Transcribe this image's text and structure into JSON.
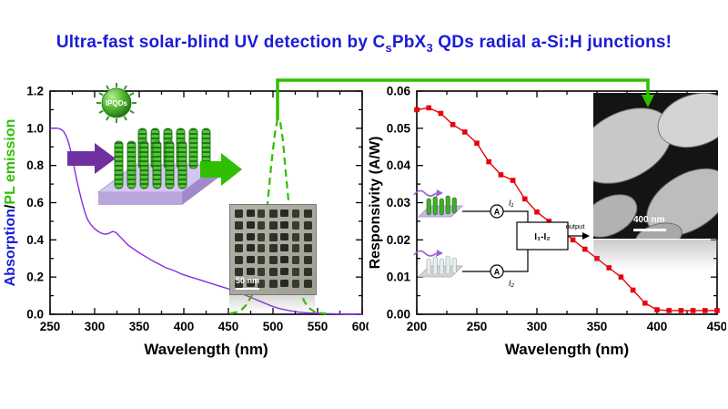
{
  "title": {
    "segments": [
      {
        "text": "Ultra-fast solar-blind UV detection by C",
        "sub": false
      },
      {
        "text": "s",
        "sub": true
      },
      {
        "text": "PbX",
        "sub": false
      },
      {
        "text": "3",
        "sub": true
      },
      {
        "text": " QDs radial a-Si:H junctions!",
        "sub": false
      }
    ],
    "color": "#1b1bd8"
  },
  "colors": {
    "title_blue": "#1b1bd8",
    "absorption_purple": "#8a2be2",
    "pl_green": "#2ebf00",
    "responsivity_red": "#e8000b",
    "arrow_purple": "#7030a0",
    "arrow_green": "#2ebf00",
    "axis_black": "#000000"
  },
  "chart_data": [
    {
      "type": "line",
      "title": "",
      "xlabel": "Wavelength (nm)",
      "ylabel": "Absorption/PL emission",
      "ylabel_segments": [
        {
          "text": "Absorption",
          "color": "#1b1bd8"
        },
        {
          "text": "/",
          "color": "#000000"
        },
        {
          "text": "PL emission",
          "color": "#2ebf00"
        }
      ],
      "xlim": [
        250,
        600
      ],
      "ylim": [
        0,
        1.2
      ],
      "xticks": [
        250,
        300,
        350,
        400,
        450,
        500,
        550,
        600
      ],
      "xtick_labels": [
        "250",
        "300",
        "350",
        "400",
        "450",
        "500",
        "550",
        "600"
      ],
      "yticks": [
        0,
        0.2,
        0.4,
        0.6,
        0.8,
        1.0,
        1.2
      ],
      "ytick_labels": [
        "0.0",
        "0.2",
        "0.4",
        "0.6",
        "0.8",
        "1.0",
        "1.2"
      ],
      "minor_x_step": 25,
      "minor_y_step": 0.1,
      "grid": false,
      "legend": "none",
      "series": [
        {
          "name": "Absorption",
          "color": "#8a2be2",
          "style": "solid",
          "width": 1.4,
          "x": [
            250,
            253,
            256,
            259,
            262,
            265,
            268,
            271,
            274,
            277,
            280,
            283,
            286,
            289,
            292,
            296,
            300,
            304,
            308,
            312,
            316,
            320,
            324,
            328,
            333,
            338,
            344,
            350,
            357,
            364,
            372,
            380,
            389,
            398,
            408,
            418,
            428,
            438,
            448,
            458,
            468,
            478,
            488,
            498,
            508,
            518,
            528,
            540,
            555,
            570,
            585,
            600
          ],
          "y": [
            1.0,
            1.0,
            1.0,
            1.0,
            0.995,
            0.985,
            0.96,
            0.92,
            0.86,
            0.79,
            0.72,
            0.66,
            0.6,
            0.55,
            0.51,
            0.48,
            0.46,
            0.445,
            0.435,
            0.43,
            0.435,
            0.445,
            0.44,
            0.42,
            0.395,
            0.37,
            0.35,
            0.33,
            0.31,
            0.29,
            0.27,
            0.25,
            0.235,
            0.215,
            0.2,
            0.185,
            0.17,
            0.155,
            0.14,
            0.125,
            0.105,
            0.085,
            0.065,
            0.045,
            0.03,
            0.02,
            0.012,
            0.007,
            0.004,
            0.002,
            0.001,
            0.001
          ]
        },
        {
          "name": "PL emission",
          "color": "#2ebf00",
          "style": "dashed",
          "width": 2.2,
          "x": [
            452,
            458,
            464,
            470,
            476,
            481,
            486,
            490,
            494,
            498,
            502,
            505,
            508,
            511,
            514,
            518,
            522,
            526,
            530,
            535,
            540,
            546,
            552,
            560
          ],
          "y": [
            0.005,
            0.01,
            0.02,
            0.05,
            0.1,
            0.17,
            0.28,
            0.42,
            0.6,
            0.8,
            0.97,
            1.05,
            1.04,
            0.94,
            0.78,
            0.58,
            0.4,
            0.25,
            0.14,
            0.07,
            0.035,
            0.015,
            0.007,
            0.003
          ]
        }
      ]
    },
    {
      "type": "line",
      "title": "",
      "xlabel": "Wavelength (nm)",
      "ylabel": "Responsivity (A/W)",
      "ylabel_segments": [
        {
          "text": "Responsivity (A/W)",
          "color": "#000000"
        }
      ],
      "xlim": [
        200,
        450
      ],
      "ylim": [
        0,
        0.06
      ],
      "xticks": [
        200,
        250,
        300,
        350,
        400,
        450
      ],
      "xtick_labels": [
        "200",
        "250",
        "300",
        "350",
        "400",
        "450"
      ],
      "yticks": [
        0,
        0.01,
        0.02,
        0.03,
        0.04,
        0.05,
        0.06
      ],
      "ytick_labels": [
        "0.00",
        "0.01",
        "0.02",
        "0.03",
        "0.04",
        "0.05",
        "0.06"
      ],
      "minor_x_step": 25,
      "minor_y_step": 0.005,
      "grid": false,
      "legend": "none",
      "series": [
        {
          "name": "Responsivity",
          "color": "#e8000b",
          "style": "solid",
          "width": 1.4,
          "marker": "square",
          "x": [
            200,
            210,
            220,
            230,
            240,
            250,
            260,
            270,
            280,
            290,
            300,
            310,
            320,
            330,
            340,
            350,
            360,
            370,
            380,
            390,
            400,
            410,
            420,
            430,
            440,
            450
          ],
          "y": [
            0.055,
            0.0555,
            0.054,
            0.051,
            0.049,
            0.046,
            0.041,
            0.0375,
            0.036,
            0.031,
            0.0275,
            0.025,
            0.0225,
            0.02,
            0.0175,
            0.015,
            0.0125,
            0.01,
            0.0065,
            0.003,
            0.0012,
            0.001,
            0.001,
            0.001,
            0.001,
            0.001
          ]
        }
      ]
    }
  ],
  "insets": {
    "ipqds_label": "IPQDs",
    "tem_scale_label": "50 nm",
    "sem_scale_label": "400 nm",
    "circuit": {
      "ammeter_label": "A",
      "i1_label": "I₁",
      "i2_label": "I₂",
      "diff_label": "I₁-I₂",
      "output_label": "output"
    }
  }
}
